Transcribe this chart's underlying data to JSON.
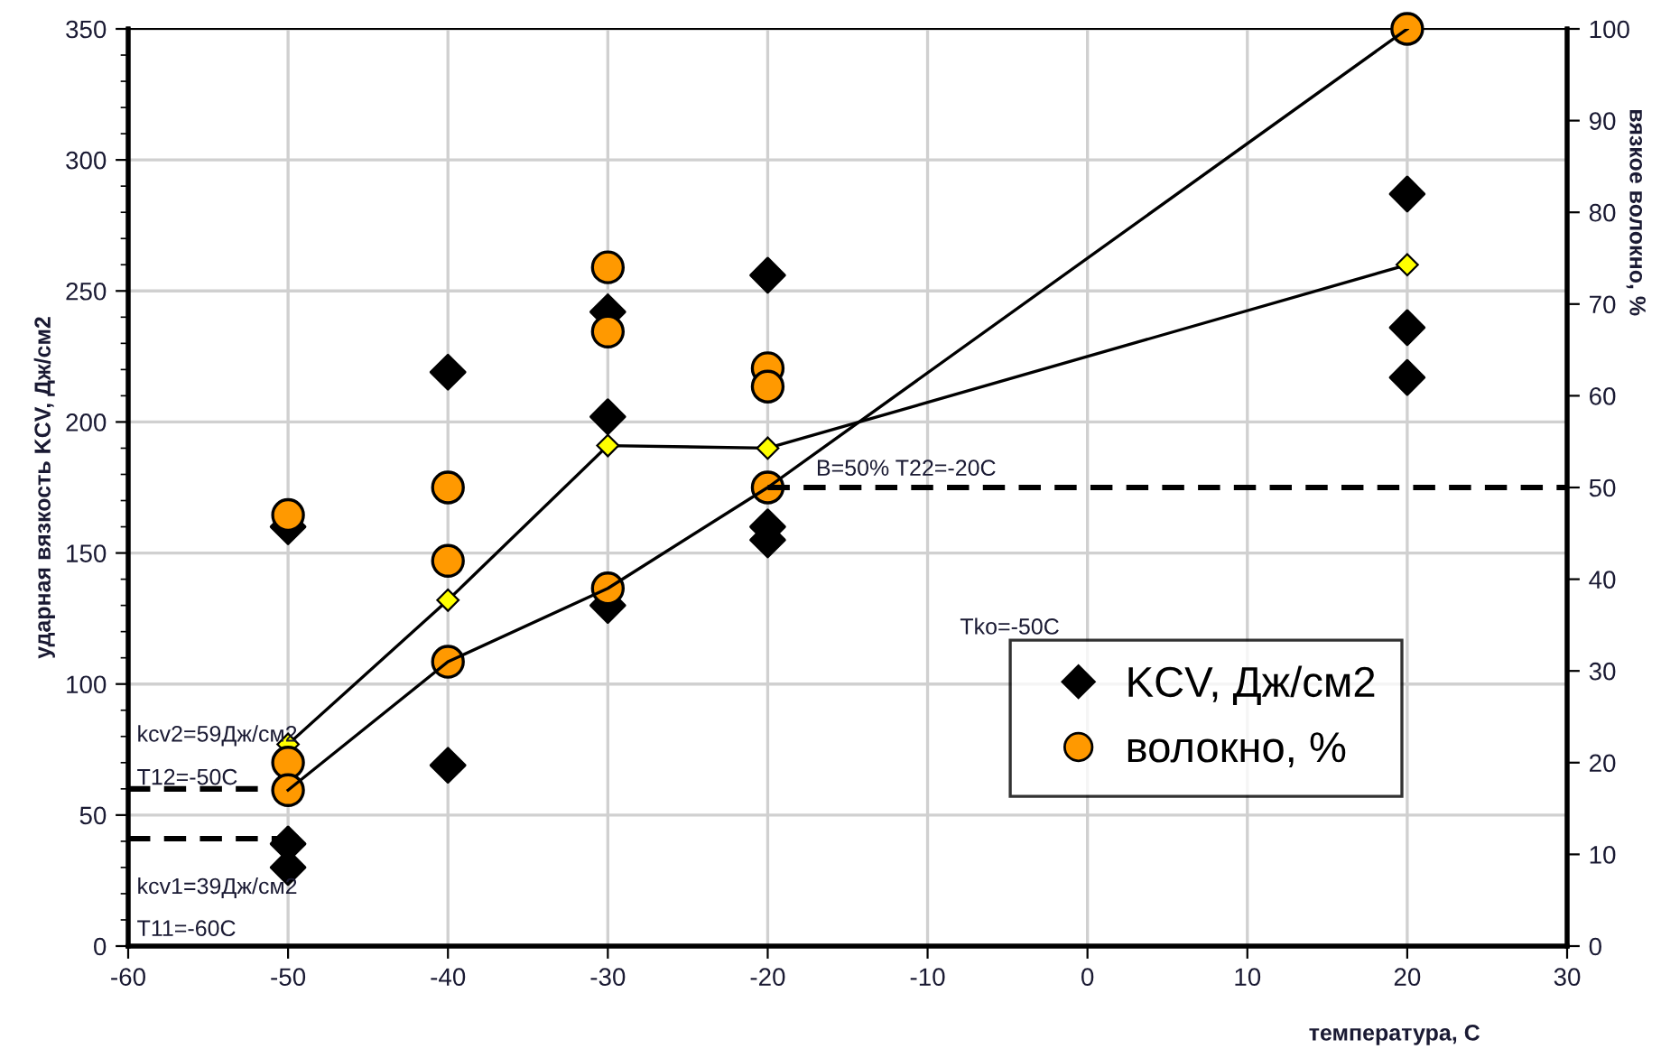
{
  "chart_data": {
    "type": "scatter",
    "xlabel": "температура, С",
    "ylabel": "ударная вязкость KCV, Дж/см2",
    "y2label": "вязкое волокно, %",
    "xlim": [
      -60,
      30
    ],
    "xticks": [
      -60,
      -50,
      -40,
      -30,
      -20,
      -10,
      0,
      10,
      20,
      30
    ],
    "ylim": [
      0,
      350
    ],
    "yticks": [
      0,
      50,
      100,
      150,
      200,
      250,
      300,
      350
    ],
    "y2lim": [
      0,
      100
    ],
    "y2ticks": [
      0,
      10,
      20,
      30,
      40,
      50,
      60,
      70,
      80,
      90,
      100
    ],
    "grid": true,
    "legend": "bottom right",
    "series": [
      {
        "name": "KCV, Дж/см2",
        "marker": "diamond",
        "color": "#000000",
        "x": [
          -50,
          -50,
          -50,
          -40,
          -40,
          -30,
          -30,
          -30,
          -20,
          -20,
          -20,
          20,
          20,
          20
        ],
        "values": [
          160,
          39,
          30,
          219,
          69,
          242,
          202,
          130,
          256,
          160,
          155,
          287,
          236,
          217
        ]
      },
      {
        "name": "волокно, %",
        "marker": "circle",
        "color": "#ff9900",
        "axis": "y2",
        "x": [
          -50,
          -50,
          -50,
          -40,
          -40,
          -40,
          -30,
          -30,
          -30,
          -20,
          -20,
          -20,
          20
        ],
        "values": [
          47,
          20,
          17,
          50,
          42,
          31,
          74,
          67,
          39,
          63,
          61,
          50,
          100
        ]
      },
      {
        "type": "line",
        "marker": "diamond",
        "color": "#ffff00",
        "x": [
          -50,
          -40,
          -30,
          -20,
          20
        ],
        "values": [
          77,
          132,
          191,
          190,
          260
        ]
      },
      {
        "type": "line",
        "marker": "none",
        "color": "#000000",
        "axis": "y2",
        "x": [
          -50,
          -40,
          -30,
          -20,
          20
        ],
        "values": [
          17,
          31,
          39,
          50,
          100
        ]
      },
      {
        "type": "line",
        "marker": "none",
        "line_style": "dashed",
        "color": "#000000",
        "x": [
          -60,
          -50
        ],
        "values": [
          60,
          60
        ]
      },
      {
        "type": "line",
        "marker": "none",
        "line_style": "dashed",
        "color": "#000000",
        "x": [
          -60,
          -50
        ],
        "values": [
          41,
          41
        ]
      },
      {
        "type": "line",
        "marker": "none",
        "line_style": "dashed",
        "color": "#000000",
        "axis": "y2",
        "x": [
          -20,
          30
        ],
        "values": [
          50,
          50
        ]
      }
    ],
    "annotations": [
      "kcv2=59Дж/см2",
      "T12=-50C",
      "kcv1=39Дж/см2",
      "T11=-60C",
      "B=50% T22=-20C",
      "Tko=-50C"
    ]
  }
}
